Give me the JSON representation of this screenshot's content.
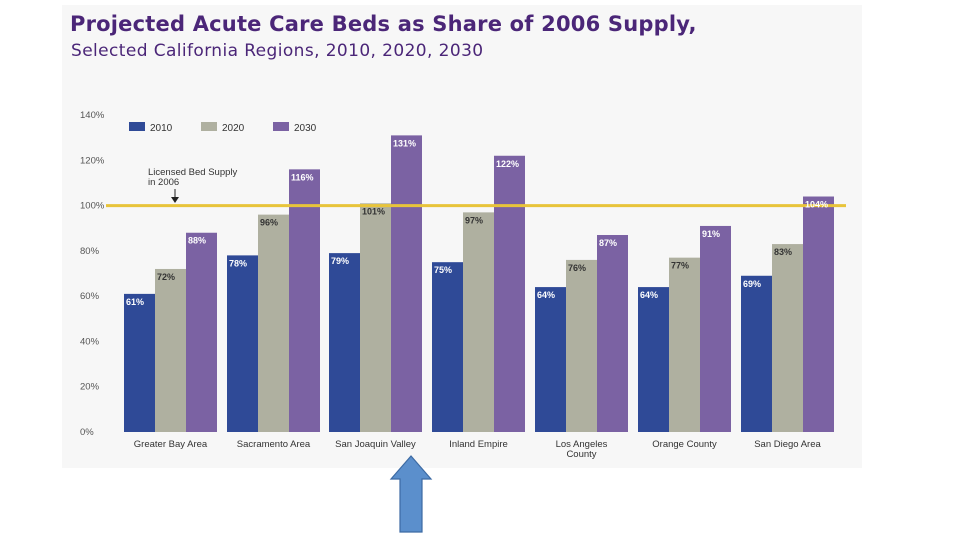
{
  "colors": {
    "title": "#4b2678",
    "subtitle": "#4b2678",
    "s2010": "#2f4a97",
    "s2020": "#afb0a0",
    "s2030": "#7b62a3",
    "reference_line": "#e8c43a",
    "arrow_fill": "#5b8fcc",
    "arrow_stroke": "#3c6aa3",
    "axis_text": "#555555"
  },
  "header": {
    "title": "Projected Acute Care Beds as Share of 2006 Supply,",
    "subtitle": "Selected California Regions, 2010, 2020, 2030"
  },
  "chart_data": {
    "type": "bar",
    "title": "Projected Acute Care Beds as Share of 2006 Supply,",
    "subtitle": "Selected California Regions, 2010, 2020, 2030",
    "xlabel": "",
    "ylabel": "",
    "ylim": [
      0,
      140
    ],
    "yticks": [
      "0%",
      "20%",
      "40%",
      "60%",
      "80%",
      "100%",
      "120%",
      "140%"
    ],
    "categories": [
      "Greater Bay Area",
      "Sacramento Area",
      "San Joaquin Valley",
      "Inland Empire",
      "Los Angeles County",
      "Orange County",
      "San Diego Area"
    ],
    "series": [
      {
        "name": "2010",
        "values": [
          61,
          78,
          79,
          75,
          64,
          64,
          69
        ]
      },
      {
        "name": "2020",
        "values": [
          72,
          96,
          101,
          97,
          76,
          77,
          83
        ]
      },
      {
        "name": "2030",
        "values": [
          88,
          116,
          131,
          122,
          87,
          91,
          104
        ]
      }
    ],
    "data_labels": [
      [
        "61%",
        "78%",
        "79%",
        "75%",
        "64%",
        "64%",
        "69%"
      ],
      [
        "72%",
        "96%",
        "101%",
        "97%",
        "76%",
        "77%",
        "83%"
      ],
      [
        "88%",
        "116%",
        "131%",
        "122%",
        "87%",
        "91%",
        "104%"
      ]
    ],
    "reference_line": {
      "value": 100,
      "label": "Licensed Bed Supply in 2006"
    },
    "legend_position": "top-left",
    "grid": false
  },
  "annotation": {
    "arrow_target": "San Joaquin Valley",
    "direction": "up"
  }
}
